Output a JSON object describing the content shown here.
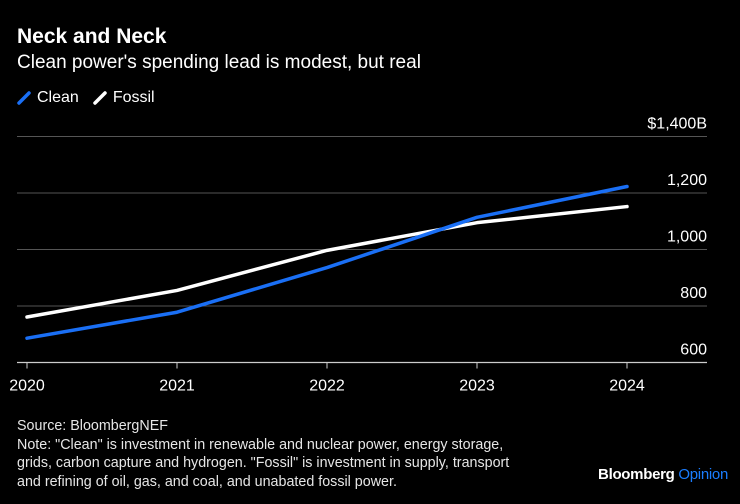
{
  "chart_data": {
    "type": "line",
    "title": "Neck and Neck",
    "subtitle": "Clean power's spending lead is modest, but real",
    "categories": [
      "2020",
      "2021",
      "2022",
      "2023",
      "2024"
    ],
    "series": [
      {
        "name": "Clean",
        "color": "#1a6ff5",
        "values": [
          686,
          778,
          936,
          1114,
          1223
        ]
      },
      {
        "name": "Fossil",
        "color": "#ffffff",
        "values": [
          761,
          855,
          997,
          1095,
          1152
        ]
      }
    ],
    "ylim": [
      600,
      1400
    ],
    "yticks": [
      600,
      800,
      1000,
      1200,
      1400
    ],
    "ytick_labels": [
      "600",
      "800",
      "1,000",
      "1,200",
      "$1,400B"
    ],
    "grid": true,
    "legend": "top-left",
    "xlabel": "",
    "ylabel": ""
  },
  "footer": {
    "source": "Source: BloombergNEF",
    "note_lines": [
      "Note: \"Clean\" is investment in renewable and nuclear power, energy storage,",
      "grids, carbon capture and hydrogen. \"Fossil\" is investment in supply, transport",
      "and refining of oil, gas, and coal, and unabated fossil power."
    ]
  },
  "brand": {
    "name": "Bloomberg",
    "section": "Opinion"
  }
}
